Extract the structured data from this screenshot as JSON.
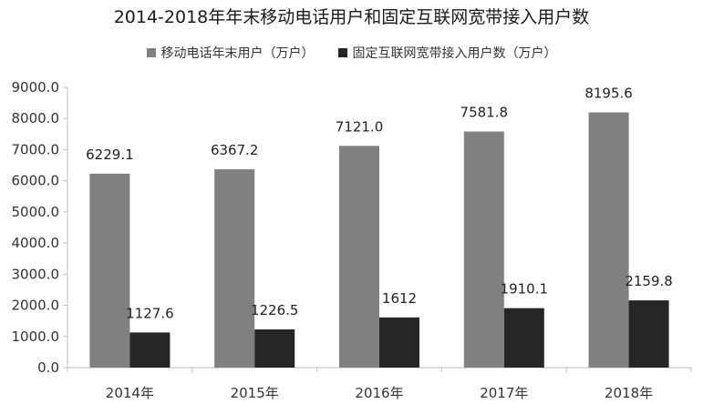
{
  "chart_data": {
    "type": "bar",
    "title": "2014-2018年年末移动电话用户和固定互联网宽带接入用户数",
    "xlabel": "",
    "ylabel": "",
    "categories": [
      "2014年",
      "2015年",
      "2016年",
      "2017年",
      "2018年"
    ],
    "ylim": [
      0,
      9000
    ],
    "yticks": [
      "0.0",
      "1000.0",
      "2000.0",
      "3000.0",
      "4000.0",
      "5000.0",
      "6000.0",
      "7000.0",
      "8000.0",
      "9000.0"
    ],
    "grid": false,
    "legend_position": "top",
    "series": [
      {
        "name": "移动电话年末用户（万户）",
        "color": "#808080",
        "values": [
          6229.1,
          6367.2,
          7121.0,
          7581.8,
          8195.6
        ],
        "labels": [
          "6229.1",
          "6367.2",
          "7121.0",
          "7581.8",
          "8195.6"
        ]
      },
      {
        "name": "固定互联网宽带接入用户数（万户）",
        "color": "#262626",
        "values": [
          1127.6,
          1226.5,
          1612,
          1910.1,
          2159.8
        ],
        "labels": [
          "1127.6",
          "1226.5",
          "1612",
          "1910.1",
          "2159.8"
        ]
      }
    ]
  }
}
